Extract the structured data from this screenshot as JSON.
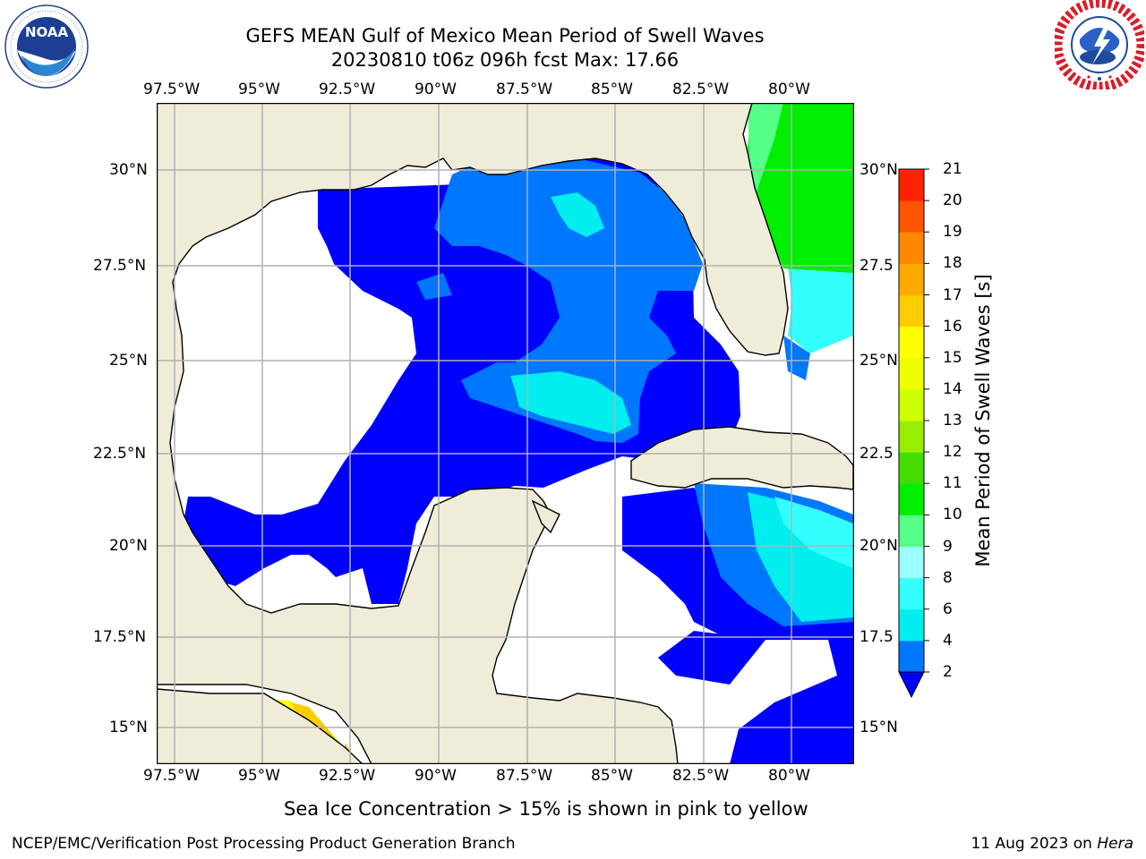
{
  "header": {
    "title_line1": "GEFS MEAN Gulf of Mexico Mean Period of Swell Waves",
    "title_line2": "20230810 t06z 096h fcst   Max: 17.66"
  },
  "logos": {
    "left": {
      "name": "NOAA",
      "ring_text": "NATIONAL OCEANIC AND ATMOSPHERIC ADMINISTRATION · U.S. DEPARTMENT OF COMMERCE"
    },
    "right": {
      "ring_text": "NATIONAL WEATHER SERVICE"
    }
  },
  "map": {
    "lon_labels": [
      "97.5°W",
      "95°W",
      "92.5°W",
      "90°W",
      "87.5°W",
      "85°W",
      "82.5°W",
      "80°W"
    ],
    "lat_labels_left": [
      "30°N",
      "27.5°N",
      "25°N",
      "22.5°N",
      "20°N",
      "17.5°N",
      "15°N"
    ],
    "lat_labels_right": [
      "30°N",
      "27.5",
      "25°N",
      "22.5",
      "20°N",
      "17.5",
      "15°N"
    ],
    "extent": {
      "lon_min": -98,
      "lon_max": -78.25,
      "lat_min": 14,
      "lat_max": 31.8
    },
    "colors": {
      "land": "#efedd9",
      "ocean_low": "#ffffff",
      "coast": "#000000",
      "grid": "#b0b0b0"
    }
  },
  "colorbar": {
    "label": "Mean Period of Swell Waves [s]",
    "ticks": [
      "2",
      "4",
      "6",
      "8",
      "9",
      "10",
      "11",
      "12",
      "13",
      "14",
      "15",
      "16",
      "17",
      "18",
      "19",
      "20",
      "21"
    ],
    "colors": [
      "#0000ff",
      "#0077ff",
      "#00eeee",
      "#33ffff",
      "#99ffff",
      "#55ff88",
      "#00ee00",
      "#44dd00",
      "#99ee00",
      "#ccff00",
      "#eeff00",
      "#ffff00",
      "#ffcc00",
      "#ffaa00",
      "#ff8800",
      "#ff5500",
      "#ff2200",
      "#ff0000"
    ]
  },
  "caption": "Sea Ice Concentration > 15% is shown in pink to yellow",
  "footer": {
    "left": "NCEP/EMC/Verification Post Processing Product Generation Branch",
    "right_date": "11 Aug 2023 on ",
    "right_host": "Hera"
  }
}
